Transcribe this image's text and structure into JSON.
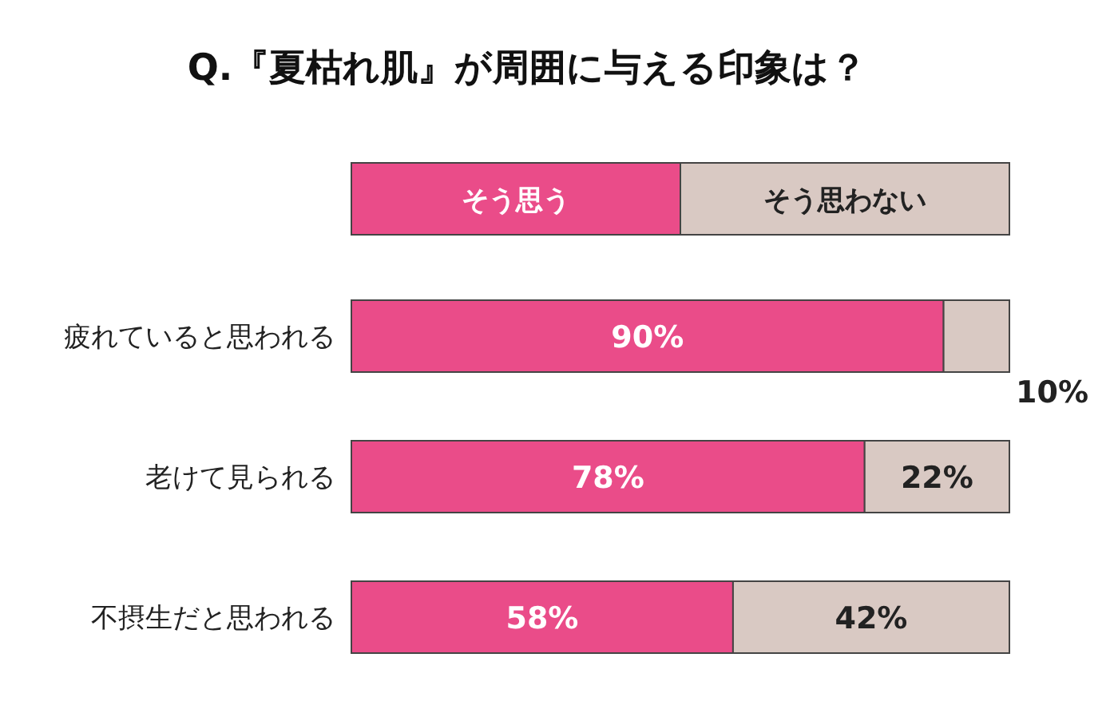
{
  "chart_data": {
    "type": "bar",
    "orientation": "horizontal",
    "stacked": true,
    "title": "Q.『夏枯れ肌』が周囲に与える印象は？",
    "categories": [
      "疲れていると思われる",
      "老けて見られる",
      "不摂生だと思われる"
    ],
    "series": [
      {
        "name": "そう思う",
        "color": "#ea4c89",
        "values": [
          90,
          78,
          58
        ],
        "value_labels": [
          "90%",
          "78%",
          "58%"
        ]
      },
      {
        "name": "そう思わない",
        "color": "#d9c9c3",
        "values": [
          10,
          22,
          42
        ],
        "value_labels": [
          "10%",
          "22%",
          "42%"
        ]
      }
    ],
    "legend": "top"
  }
}
